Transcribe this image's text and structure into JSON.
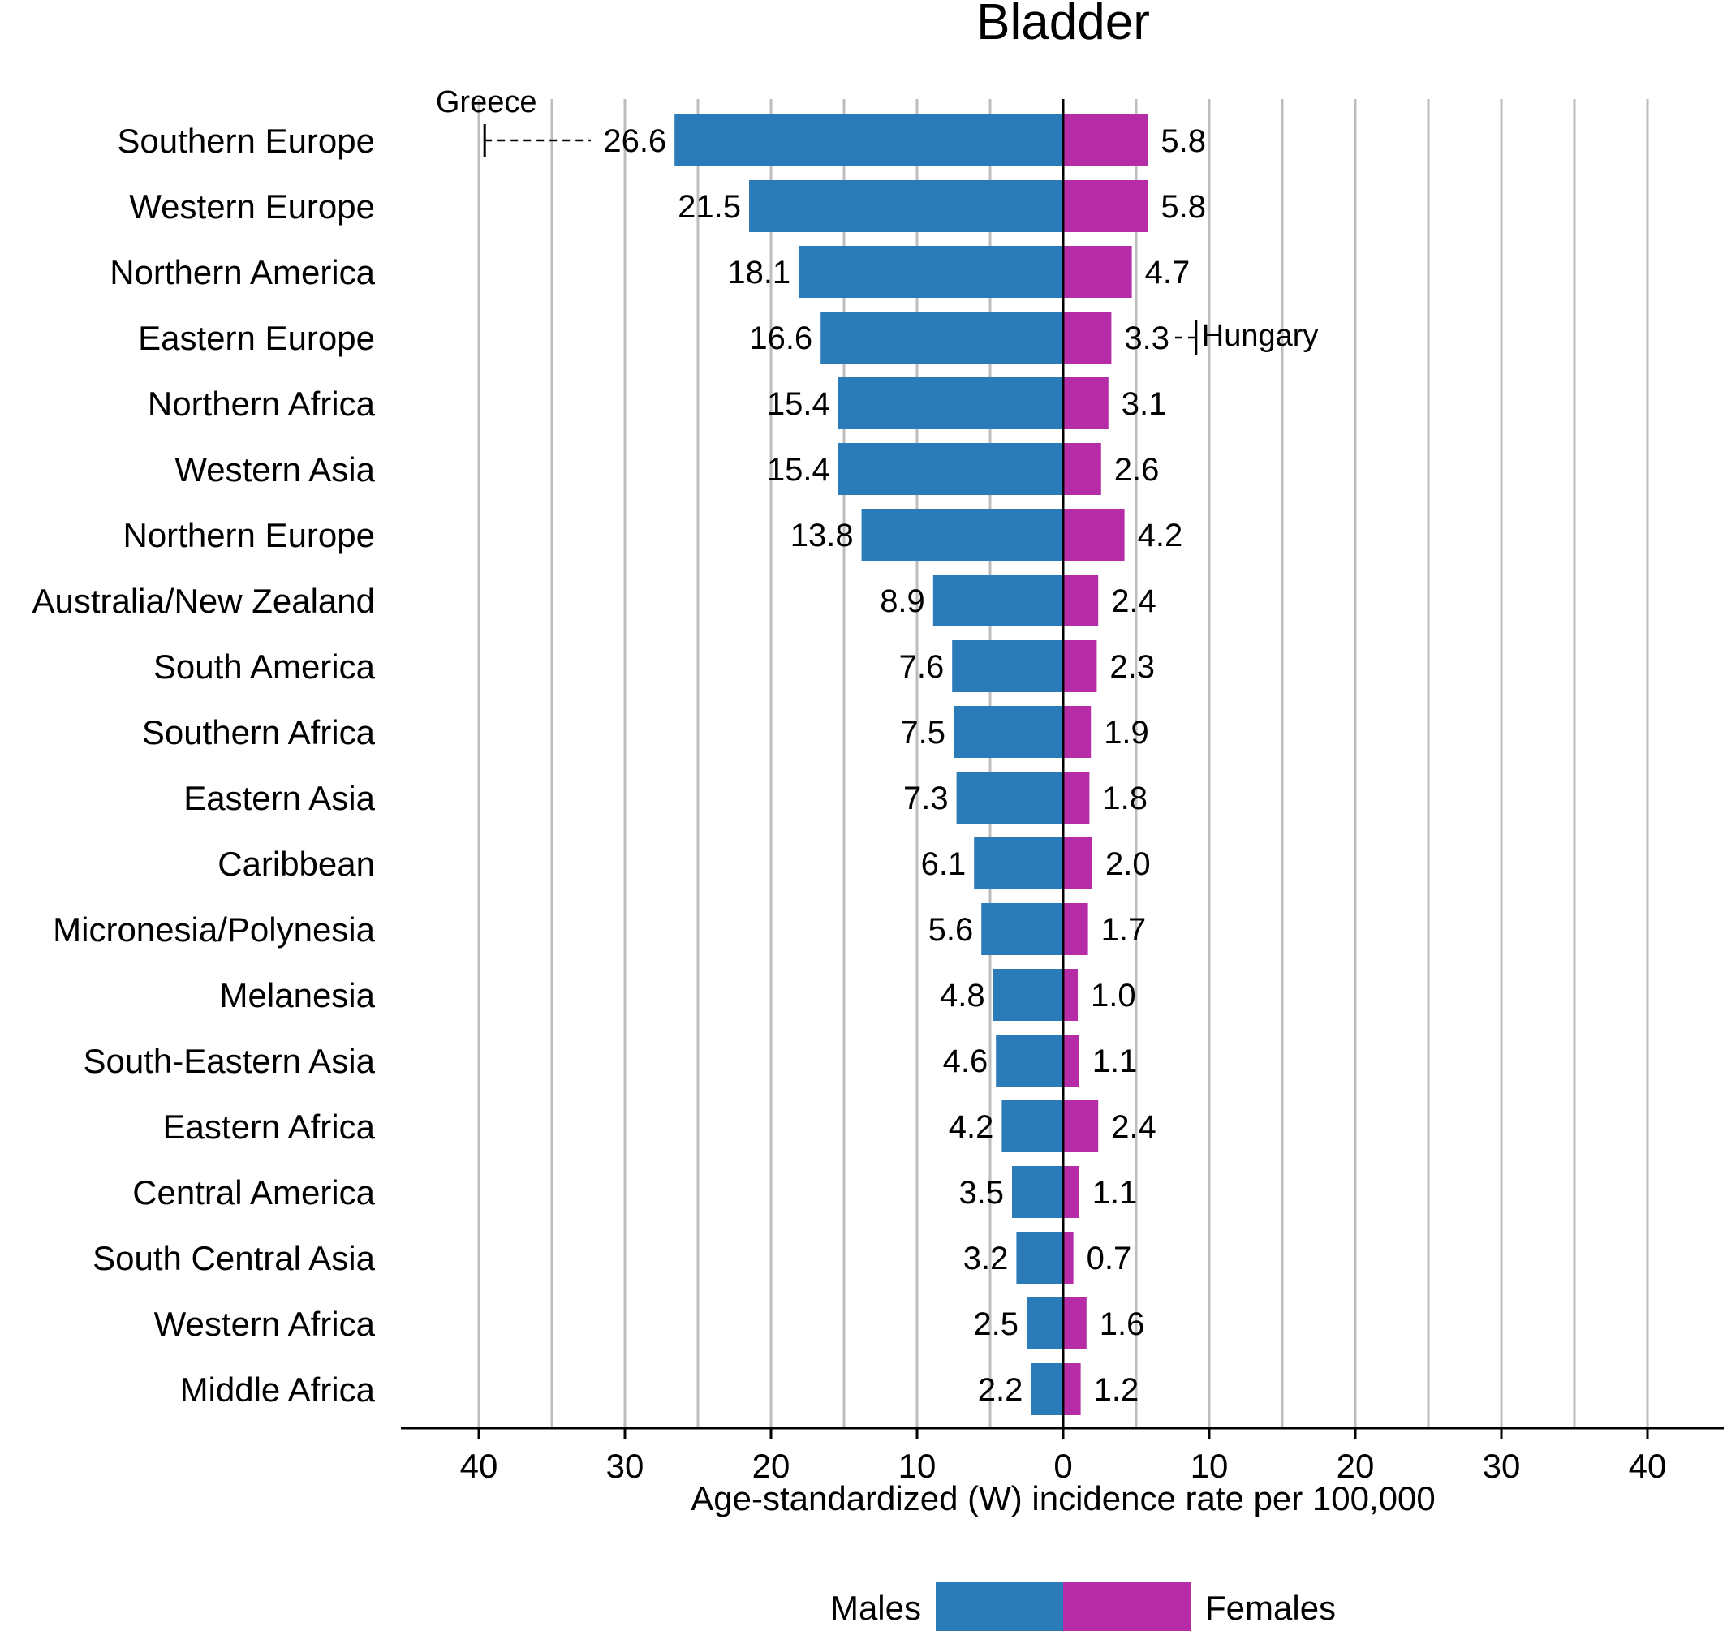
{
  "chart_data": {
    "type": "bar",
    "orientation": "horizontal-butterfly",
    "title": "Bladder",
    "xlabel": "Age-standardized (W) incidence rate per 100,000",
    "ylabel": "",
    "xlim": [
      -45,
      45
    ],
    "xticks": [
      -40,
      -30,
      -20,
      -10,
      0,
      10,
      20,
      30,
      40
    ],
    "xtick_labels": [
      "40",
      "30",
      "20",
      "10",
      "0",
      "10",
      "20",
      "30",
      "40"
    ],
    "grid": true,
    "categories": [
      "Southern Europe",
      "Western Europe",
      "Northern America",
      "Eastern Europe",
      "Northern Africa",
      "Western Asia",
      "Northern Europe",
      "Australia/New Zealand",
      "South America",
      "Southern Africa",
      "Eastern Asia",
      "Caribbean",
      "Micronesia/Polynesia",
      "Melanesia",
      "South-Eastern Asia",
      "Eastern Africa",
      "Central America",
      "South Central Asia",
      "Western Africa",
      "Middle Africa"
    ],
    "series": [
      {
        "name": "Males",
        "side": "left",
        "color": "#2b7bb9",
        "values": [
          26.6,
          21.5,
          18.1,
          16.6,
          15.4,
          15.4,
          13.8,
          8.9,
          7.6,
          7.5,
          7.3,
          6.1,
          5.6,
          4.8,
          4.6,
          4.2,
          3.5,
          3.2,
          2.5,
          2.2
        ],
        "labels": [
          "26.6",
          "21.5",
          "18.1",
          "16.6",
          "15.4",
          "15.4",
          "13.8",
          "8.9",
          "7.6",
          "7.5",
          "7.3",
          "6.1",
          "5.6",
          "4.8",
          "4.6",
          "4.2",
          "3.5",
          "3.2",
          "2.5",
          "2.2"
        ]
      },
      {
        "name": "Females",
        "side": "right",
        "color": "#b62ba6",
        "values": [
          5.8,
          5.8,
          4.7,
          3.3,
          3.1,
          2.6,
          4.2,
          2.4,
          2.3,
          1.9,
          1.8,
          2.0,
          1.7,
          1.0,
          1.1,
          2.4,
          1.1,
          0.7,
          1.6,
          1.2
        ],
        "labels": [
          "5.8",
          "5.8",
          "4.7",
          "3.3",
          "3.1",
          "2.6",
          "4.2",
          "2.4",
          "2.3",
          "1.9",
          "1.8",
          "2.0",
          "1.7",
          "1.0",
          "1.1",
          "2.4",
          "1.1",
          "0.7",
          "1.6",
          "1.2"
        ]
      }
    ],
    "annotations": [
      {
        "text": "Greece",
        "series": "Males",
        "category": "Southern Europe",
        "value": 39.6
      },
      {
        "text": "Hungary",
        "series": "Females",
        "category": "Eastern Europe",
        "value": 9.1
      }
    ],
    "legend": {
      "position": "bottom-center",
      "labels": [
        "Males",
        "Females"
      ]
    }
  }
}
